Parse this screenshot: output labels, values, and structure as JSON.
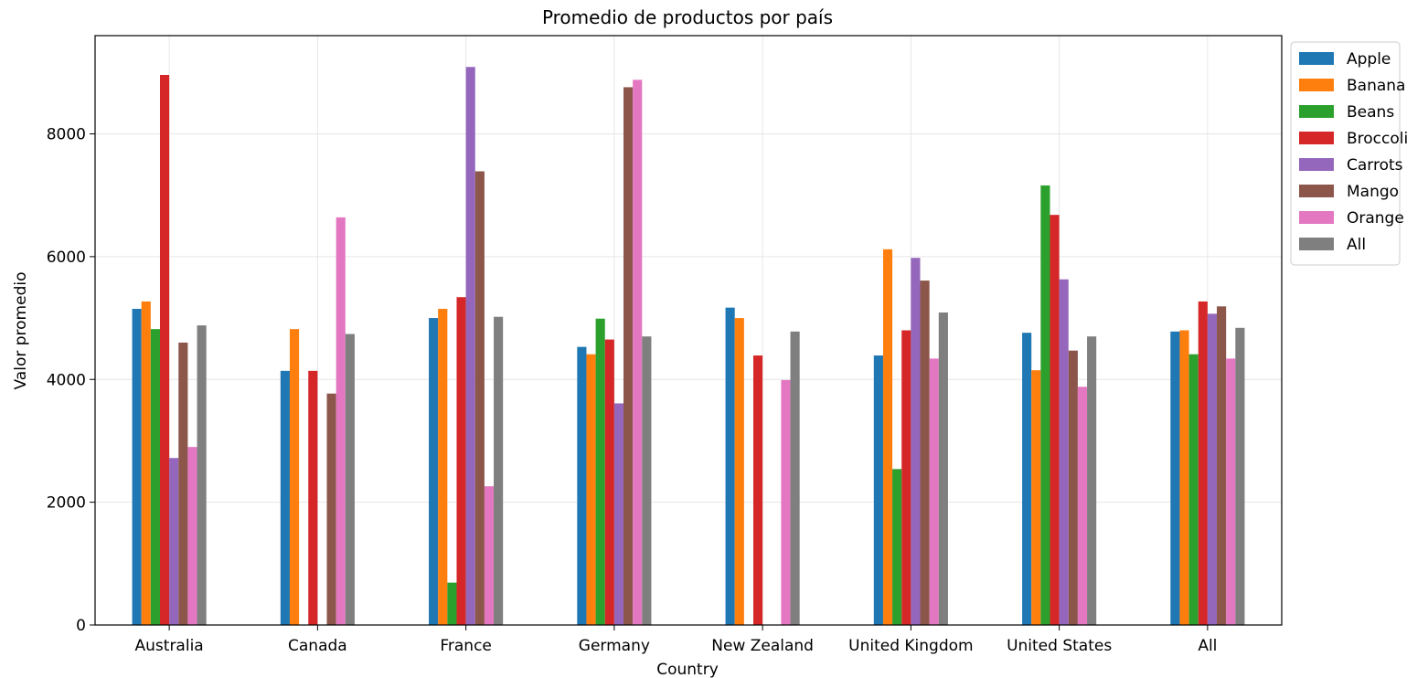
{
  "chart_data": {
    "type": "bar",
    "title": "Promedio de productos por país",
    "xlabel": "Country",
    "ylabel": "Valor promedio",
    "ylim": [
      0,
      9600
    ],
    "yticks": [
      0,
      2000,
      4000,
      6000,
      8000
    ],
    "grid": true,
    "legend_position": "outside-top-right",
    "categories": [
      "Australia",
      "Canada",
      "France",
      "Germany",
      "New Zealand",
      "United Kingdom",
      "United States",
      "All"
    ],
    "series": [
      {
        "name": "Apple",
        "color": "#1f77b4",
        "values": [
          5150,
          4140,
          5000,
          4530,
          5170,
          4390,
          4760,
          4780
        ]
      },
      {
        "name": "Banana",
        "color": "#ff7f0e",
        "values": [
          5270,
          4820,
          5150,
          4410,
          5000,
          6120,
          4150,
          4800
        ]
      },
      {
        "name": "Beans",
        "color": "#2ca02c",
        "values": [
          4820,
          null,
          690,
          4990,
          null,
          2540,
          7160,
          4410
        ]
      },
      {
        "name": "Broccoli",
        "color": "#d62728",
        "values": [
          8960,
          4140,
          5340,
          4650,
          4390,
          4800,
          6680,
          5270
        ]
      },
      {
        "name": "Carrots",
        "color": "#9467bd",
        "values": [
          2720,
          null,
          9090,
          3610,
          null,
          5980,
          5630,
          5070
        ]
      },
      {
        "name": "Mango",
        "color": "#8c564b",
        "values": [
          4600,
          3770,
          7390,
          8760,
          null,
          5610,
          4470,
          5190
        ]
      },
      {
        "name": "Orange",
        "color": "#e377c2",
        "values": [
          2900,
          6640,
          2260,
          8880,
          3990,
          4340,
          3880,
          4340
        ]
      },
      {
        "name": "All",
        "color": "#7f7f7f",
        "values": [
          4880,
          4740,
          5020,
          4700,
          4780,
          5090,
          4700,
          4840
        ]
      }
    ]
  }
}
